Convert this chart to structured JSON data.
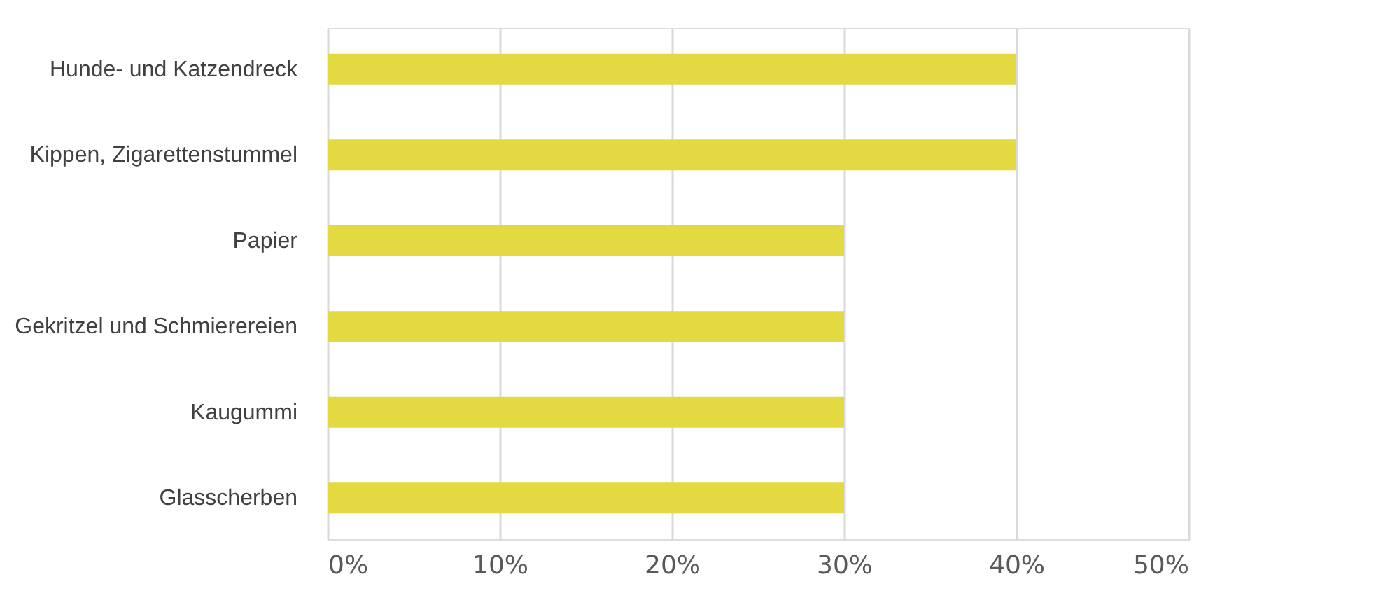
{
  "chart_data": {
    "type": "bar",
    "orientation": "horizontal",
    "categories": [
      "Hunde- und Katzendreck",
      "Kippen, Zigarettenstummel",
      "Papier",
      "Gekritzel und Schmierereien",
      "Kaugummi",
      "Glasscherben"
    ],
    "values": [
      0.4,
      0.4,
      0.3,
      0.3,
      0.3,
      0.3
    ],
    "color": "#e3d941",
    "xlim": [
      0,
      0.5
    ],
    "xticks": [
      {
        "value": 0,
        "label": "0%"
      },
      {
        "value": 0.1,
        "label": "10%"
      },
      {
        "value": 0.2,
        "label": "20%"
      },
      {
        "value": 0.3,
        "label": "30%"
      },
      {
        "value": 0.4,
        "label": "40%"
      },
      {
        "value": 0.5,
        "label": "50%"
      }
    ],
    "grid": "x"
  }
}
